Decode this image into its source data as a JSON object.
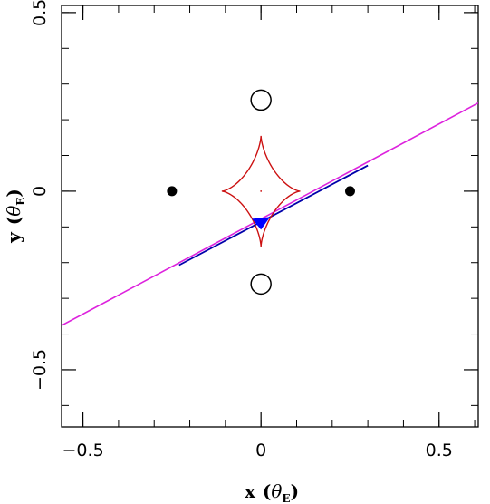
{
  "chart_data": {
    "type": "scatter",
    "title": "",
    "xlabel": "x",
    "ylabel": "y",
    "unit_symbol": "θ",
    "unit_subscript": "E",
    "xlim": [
      -0.56,
      0.61
    ],
    "ylim": [
      -0.66,
      0.52
    ],
    "x_ticks": [
      {
        "value": -0.5,
        "label": "−0.5"
      },
      {
        "value": 0,
        "label": "0"
      },
      {
        "value": 0.5,
        "label": "0.5"
      }
    ],
    "y_ticks": [
      {
        "value": -0.5,
        "label": "−0.5"
      },
      {
        "value": 0,
        "label": "0"
      },
      {
        "value": 0.5,
        "label": "0.5"
      }
    ],
    "x_minor_step": 0.1,
    "y_minor_step": 0.1,
    "grid": false,
    "filled_markers": [
      {
        "x": -0.25,
        "y": 0
      },
      {
        "x": 0.25,
        "y": 0
      }
    ],
    "open_markers": [
      {
        "x": 0,
        "y": 0.255
      },
      {
        "x": 0,
        "y": -0.26
      }
    ],
    "caustic": {
      "color": "#cc1111",
      "center": [
        0,
        0
      ],
      "half_width_x": 0.11,
      "half_height_y": 0.155
    },
    "source_trajectory": {
      "color": "#dd22dd",
      "start": [
        -0.56,
        -0.376
      ],
      "end": [
        0.61,
        0.247
      ]
    },
    "highlighted_segment": {
      "color": "#0000aa",
      "start": [
        -0.23,
        -0.207
      ],
      "end": [
        0.3,
        0.072
      ]
    },
    "source": {
      "color": "#0000ff",
      "x": 0,
      "y": -0.085
    }
  }
}
